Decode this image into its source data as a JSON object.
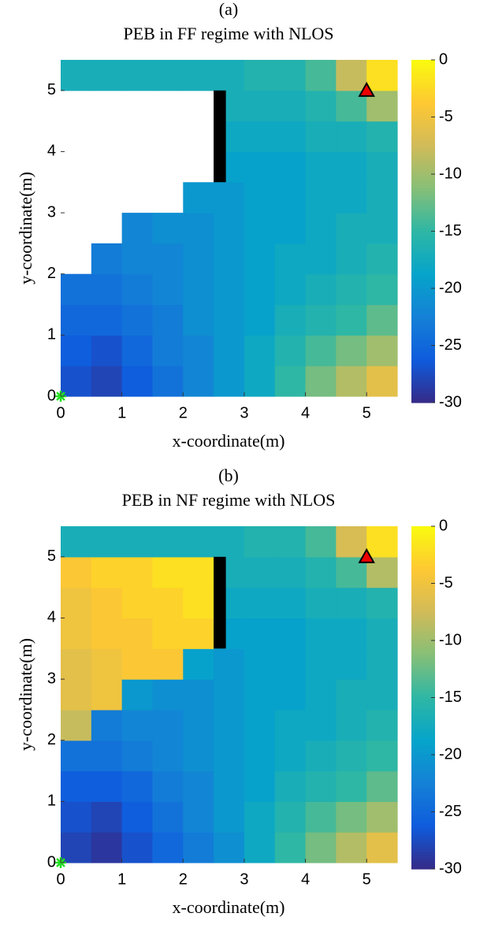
{
  "chart_data": [
    {
      "type": "heatmap",
      "label": "(a)",
      "title": "PEB in FF regime with NLOS",
      "xlabel": "x-coordinate(m)",
      "ylabel": "y-coordinate(m)",
      "x": [
        0.25,
        0.75,
        1.25,
        1.75,
        2.25,
        2.75,
        3.25,
        3.75,
        4.25,
        4.75,
        5.25
      ],
      "y": [
        0.25,
        0.75,
        1.25,
        1.75,
        2.25,
        2.75,
        3.25,
        3.75,
        4.25,
        4.75,
        5.25
      ],
      "values": [
        [
          -27,
          -28,
          -26,
          -24,
          -22,
          -20,
          -18,
          -15,
          -12,
          -9,
          -6
        ],
        [
          -26,
          -27,
          -25,
          -23,
          -22,
          -20,
          -18,
          -16,
          -14,
          -12,
          -10
        ],
        [
          -25,
          -25,
          -24,
          -23,
          -21,
          -20,
          -19,
          -17,
          -16,
          -15,
          -13
        ],
        [
          -24,
          -24,
          -23,
          -22,
          -21,
          -20,
          -19,
          -18,
          -17,
          -16,
          -15
        ],
        [
          null,
          -23,
          -22,
          -22,
          -21,
          -20,
          -19,
          -18,
          -18,
          -17,
          -16
        ],
        [
          null,
          null,
          -22,
          -21,
          -21,
          -20,
          -19,
          -19,
          -18,
          -17,
          -17
        ],
        [
          null,
          null,
          null,
          null,
          -20,
          -20,
          -19,
          -19,
          -18,
          -18,
          -17
        ],
        [
          null,
          null,
          null,
          null,
          null,
          -19,
          -19,
          -19,
          -18,
          -18,
          -17
        ],
        [
          null,
          null,
          null,
          null,
          null,
          -18,
          -18,
          -18,
          -17,
          -17,
          -16
        ],
        [
          null,
          null,
          null,
          null,
          null,
          -17,
          -17,
          -17,
          -16,
          -14,
          -10
        ],
        [
          -17,
          -17,
          -17,
          -17,
          -17,
          -17,
          -16,
          -16,
          -14,
          -8,
          -2
        ]
      ],
      "xlim": [
        0,
        5.5
      ],
      "ylim": [
        0,
        5.5
      ],
      "xticks": [
        0,
        1,
        2,
        3,
        4,
        5
      ],
      "yticks": [
        0,
        1,
        2,
        3,
        4,
        5
      ],
      "clim": [
        -30,
        0
      ],
      "cticks": [
        0,
        -5,
        -10,
        -15,
        -20,
        -25,
        -30
      ],
      "colormap": "parula",
      "wall": {
        "x": [
          2.5,
          2.7
        ],
        "y": [
          3.5,
          5
        ]
      },
      "anchor": [
        5,
        5
      ],
      "origin": [
        0,
        0
      ]
    },
    {
      "type": "heatmap",
      "label": "(b)",
      "title": "PEB in NF regime with NLOS",
      "xlabel": "x-coordinate(m)",
      "ylabel": "y-coordinate(m)",
      "x": [
        0.25,
        0.75,
        1.25,
        1.75,
        2.25,
        2.75,
        3.25,
        3.75,
        4.25,
        4.75,
        5.25
      ],
      "y": [
        0.25,
        0.75,
        1.25,
        1.75,
        2.25,
        2.75,
        3.25,
        3.75,
        4.25,
        4.75,
        5.25
      ],
      "values": [
        [
          -28,
          -29,
          -27,
          -25,
          -23,
          -21,
          -18,
          -15,
          -12,
          -9,
          -6
        ],
        [
          -27,
          -28,
          -26,
          -24,
          -22,
          -20,
          -18,
          -16,
          -14,
          -12,
          -10
        ],
        [
          -26,
          -26,
          -25,
          -23,
          -22,
          -20,
          -19,
          -17,
          -16,
          -15,
          -13
        ],
        [
          -24,
          -24,
          -23,
          -22,
          -21,
          -20,
          -19,
          -18,
          -17,
          -16,
          -15
        ],
        [
          -8,
          -23,
          -22,
          -22,
          -21,
          -20,
          -19,
          -18,
          -18,
          -17,
          -16
        ],
        [
          -6,
          -5,
          -20,
          -21,
          -21,
          -20,
          -19,
          -19,
          -18,
          -17,
          -17
        ],
        [
          -6,
          -5,
          -4,
          -4,
          -19,
          -20,
          -19,
          -19,
          -18,
          -18,
          -17
        ],
        [
          -5,
          -4,
          -4,
          -3,
          -3,
          -19,
          -19,
          -19,
          -18,
          -18,
          -17
        ],
        [
          -5,
          -4,
          -3,
          -3,
          -2,
          -18,
          -18,
          -18,
          -17,
          -17,
          -16
        ],
        [
          -4,
          -3,
          -3,
          -2,
          -2,
          -17,
          -17,
          -17,
          -16,
          -14,
          -9
        ],
        [
          -17,
          -17,
          -17,
          -17,
          -17,
          -17,
          -16,
          -16,
          -14,
          -7,
          -2
        ]
      ],
      "xlim": [
        0,
        5.5
      ],
      "ylim": [
        0,
        5.5
      ],
      "xticks": [
        0,
        1,
        2,
        3,
        4,
        5
      ],
      "yticks": [
        0,
        1,
        2,
        3,
        4,
        5
      ],
      "clim": [
        -30,
        0
      ],
      "cticks": [
        0,
        -5,
        -10,
        -15,
        -20,
        -25,
        -30
      ],
      "colormap": "parula",
      "wall": {
        "x": [
          2.5,
          2.7
        ],
        "y": [
          3.5,
          5
        ]
      },
      "anchor": [
        5,
        5
      ],
      "origin": [
        0,
        0
      ]
    }
  ]
}
